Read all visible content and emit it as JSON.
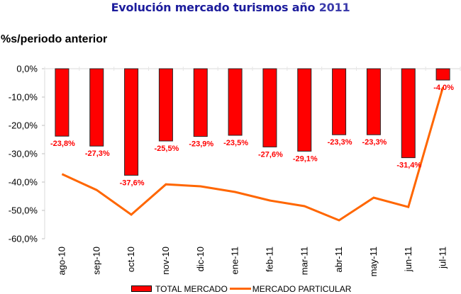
{
  "chart_data": {
    "type": "bar",
    "title": "Evolución mercado turismos año",
    "title_year": "2011",
    "ylabel": "%s/periodo anterior",
    "xlabel": "",
    "ylim": [
      -60,
      0
    ],
    "yticks": [
      0,
      -10,
      -20,
      -30,
      -40,
      -50,
      -60
    ],
    "ytick_labels": [
      "0,0%",
      "-10,0%",
      "-20,0%",
      "-30,0%",
      "-40,0%",
      "-50,0%",
      "-60,0%"
    ],
    "grid": false,
    "legend_position": "bottom",
    "categories": [
      "ago-10",
      "sep-10",
      "oct-10",
      "nov-10",
      "dic-10",
      "ene-11",
      "feb-11",
      "mar-11",
      "abr-11",
      "may-11",
      "jun-11",
      "jul-11"
    ],
    "series": [
      {
        "name": "TOTAL MERCADO",
        "type": "bar",
        "color": "#ff0000",
        "values": [
          -23.8,
          -27.3,
          -37.6,
          -25.5,
          -23.9,
          -23.5,
          -27.6,
          -29.1,
          -23.3,
          -23.3,
          -31.4,
          -4.0
        ],
        "labels": [
          "-23,8%",
          "-27,3%",
          "-37,6%",
          "-25,5%",
          "-23,9%",
          "-23,5%",
          "-27,6%",
          "-29,1%",
          "-23,3%",
          "-23,3%",
          "-31,4%",
          "-4,0%"
        ]
      },
      {
        "name": "MERCADO PARTICULAR",
        "type": "line",
        "color": "#ff6600",
        "values": [
          -37.2,
          -42.8,
          -51.5,
          -40.8,
          -41.5,
          -43.5,
          -46.5,
          -48.5,
          -53.5,
          -45.5,
          -48.8,
          -6.5
        ]
      }
    ]
  }
}
